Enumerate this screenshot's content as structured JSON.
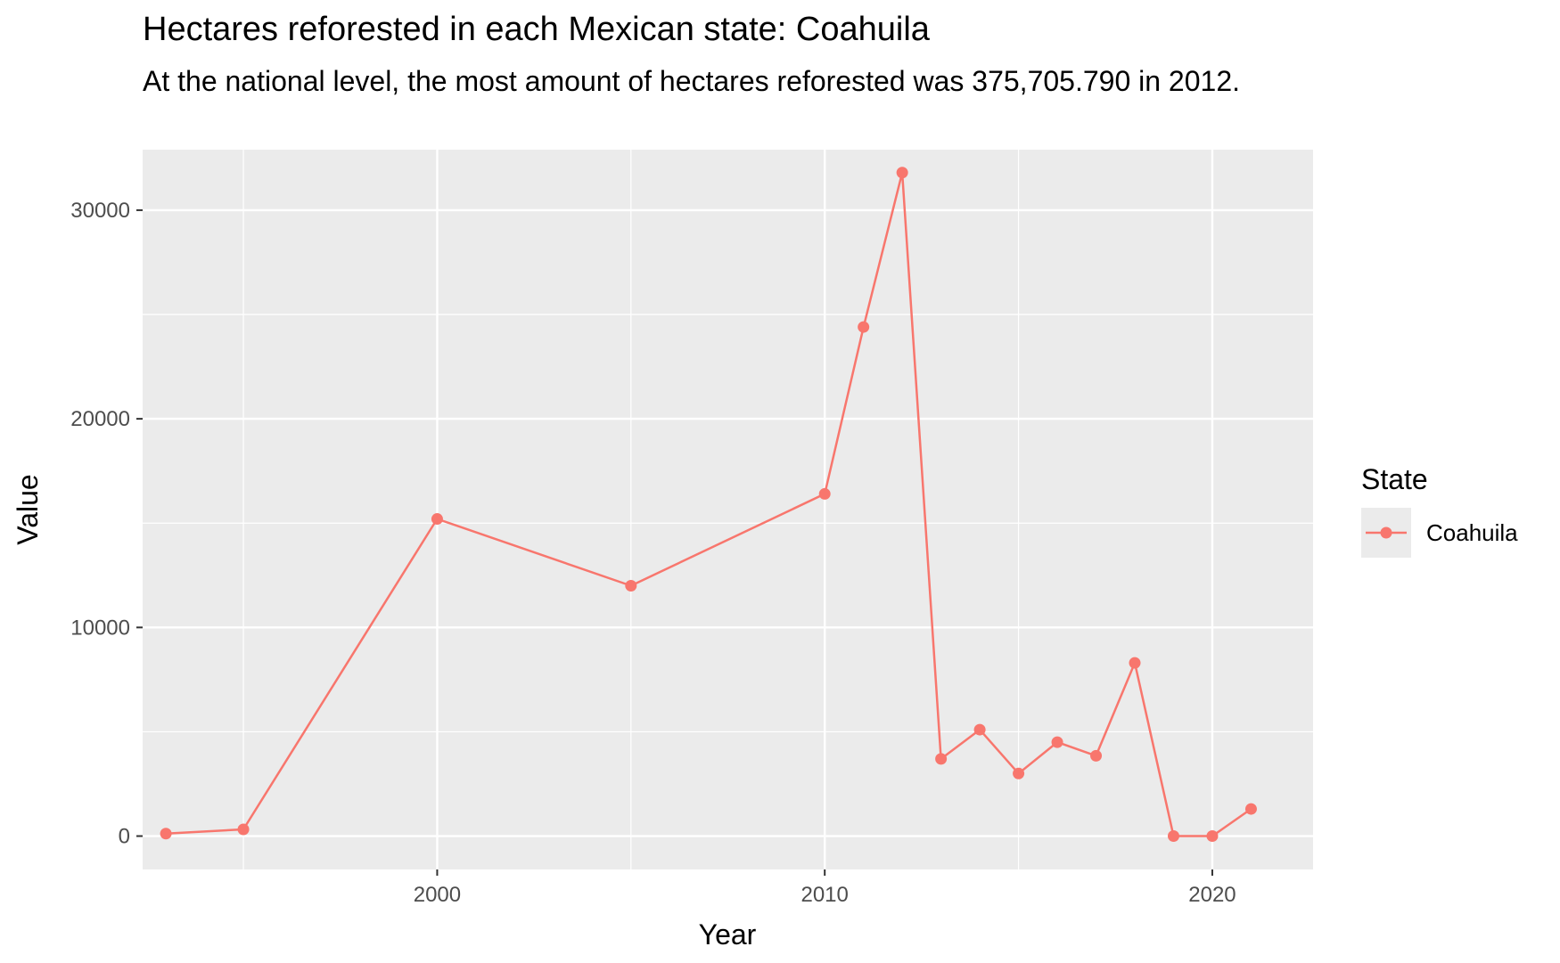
{
  "chart_data": {
    "type": "line",
    "title": "Hectares reforested in each Mexican state: Coahuila",
    "subtitle": "At the national level, the most amount of hectares reforested was 375,705.790 in 2012.",
    "xlabel": "Year",
    "ylabel": "Value",
    "xlim": [
      1992.4,
      2022.6
    ],
    "ylim": [
      -1600,
      32900
    ],
    "x_ticks": [
      2000,
      2010,
      2020
    ],
    "x_minor": [
      1995,
      2005,
      2015
    ],
    "y_ticks": [
      0,
      10000,
      20000,
      30000
    ],
    "y_minor": [
      5000,
      15000,
      25000
    ],
    "grid": true,
    "legend": {
      "title": "State",
      "position": "right"
    },
    "series": [
      {
        "name": "Coahuila",
        "color": "#F8766D",
        "x": [
          1993,
          1995,
          2000,
          2005,
          2010,
          2011,
          2012,
          2013,
          2014,
          2015,
          2016,
          2017,
          2018,
          2019,
          2020,
          2021
        ],
        "y": [
          120,
          320,
          15200,
          12000,
          16400,
          24400,
          31800,
          3700,
          5100,
          3000,
          4500,
          3850,
          8300,
          0,
          0,
          1300
        ]
      }
    ]
  }
}
